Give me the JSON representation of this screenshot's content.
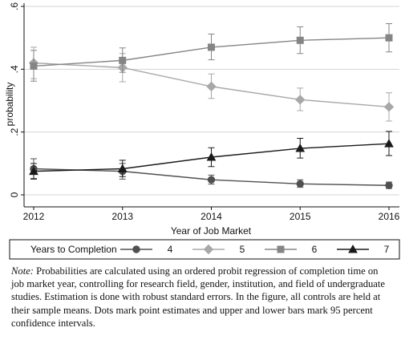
{
  "chart_data": {
    "type": "line",
    "x": [
      2012,
      2013,
      2014,
      2015,
      2016
    ],
    "xlim": [
      2012,
      2016
    ],
    "xticks": [
      2012,
      2013,
      2014,
      2015,
      2016
    ],
    "ylim": [
      0,
      0.6
    ],
    "yticks": [
      0,
      {
        "value": 0.2,
        "label": ".2"
      },
      {
        "value": 0.4,
        "label": ".4"
      },
      {
        "value": 0.6,
        "label": ".6"
      }
    ],
    "grid": true,
    "xlabel": "Year of Job Market",
    "ylabel": "probability",
    "legend_title": "Years to Completion",
    "series": [
      {
        "name": "4",
        "color": "#505050",
        "marker": "circle",
        "values": [
          0.083,
          0.075,
          0.048,
          0.035,
          0.03
        ],
        "ci_low": [
          0.052,
          0.05,
          0.034,
          0.024,
          0.02
        ],
        "ci_high": [
          0.115,
          0.1,
          0.063,
          0.048,
          0.041
        ]
      },
      {
        "name": "5",
        "color": "#a8a8a8",
        "marker": "diamond",
        "values": [
          0.42,
          0.405,
          0.345,
          0.303,
          0.28
        ],
        "ci_low": [
          0.37,
          0.36,
          0.307,
          0.268,
          0.235
        ],
        "ci_high": [
          0.47,
          0.45,
          0.385,
          0.34,
          0.325
        ]
      },
      {
        "name": "6",
        "color": "#858585",
        "marker": "square",
        "values": [
          0.41,
          0.428,
          0.47,
          0.492,
          0.5
        ],
        "ci_low": [
          0.362,
          0.39,
          0.43,
          0.45,
          0.455
        ],
        "ci_high": [
          0.46,
          0.468,
          0.512,
          0.535,
          0.545
        ]
      },
      {
        "name": "7",
        "color": "#1a1a1a",
        "marker": "triangle",
        "values": [
          0.075,
          0.083,
          0.12,
          0.148,
          0.163
        ],
        "ci_low": [
          0.05,
          0.058,
          0.09,
          0.117,
          0.125
        ],
        "ci_high": [
          0.1,
          0.11,
          0.15,
          0.18,
          0.202
        ]
      }
    ]
  },
  "note_label": "Note:",
  "note": "Probabilities are calculated using an ordered probit regression of completion time on job market year, controlling for research field, gender, institution, and field of undergraduate studies. Estimation is done with robust standard errors. In the figure, all controls are held at their sample means. Dots mark point estimates and upper and lower bars mark 95 percent confidence intervals."
}
